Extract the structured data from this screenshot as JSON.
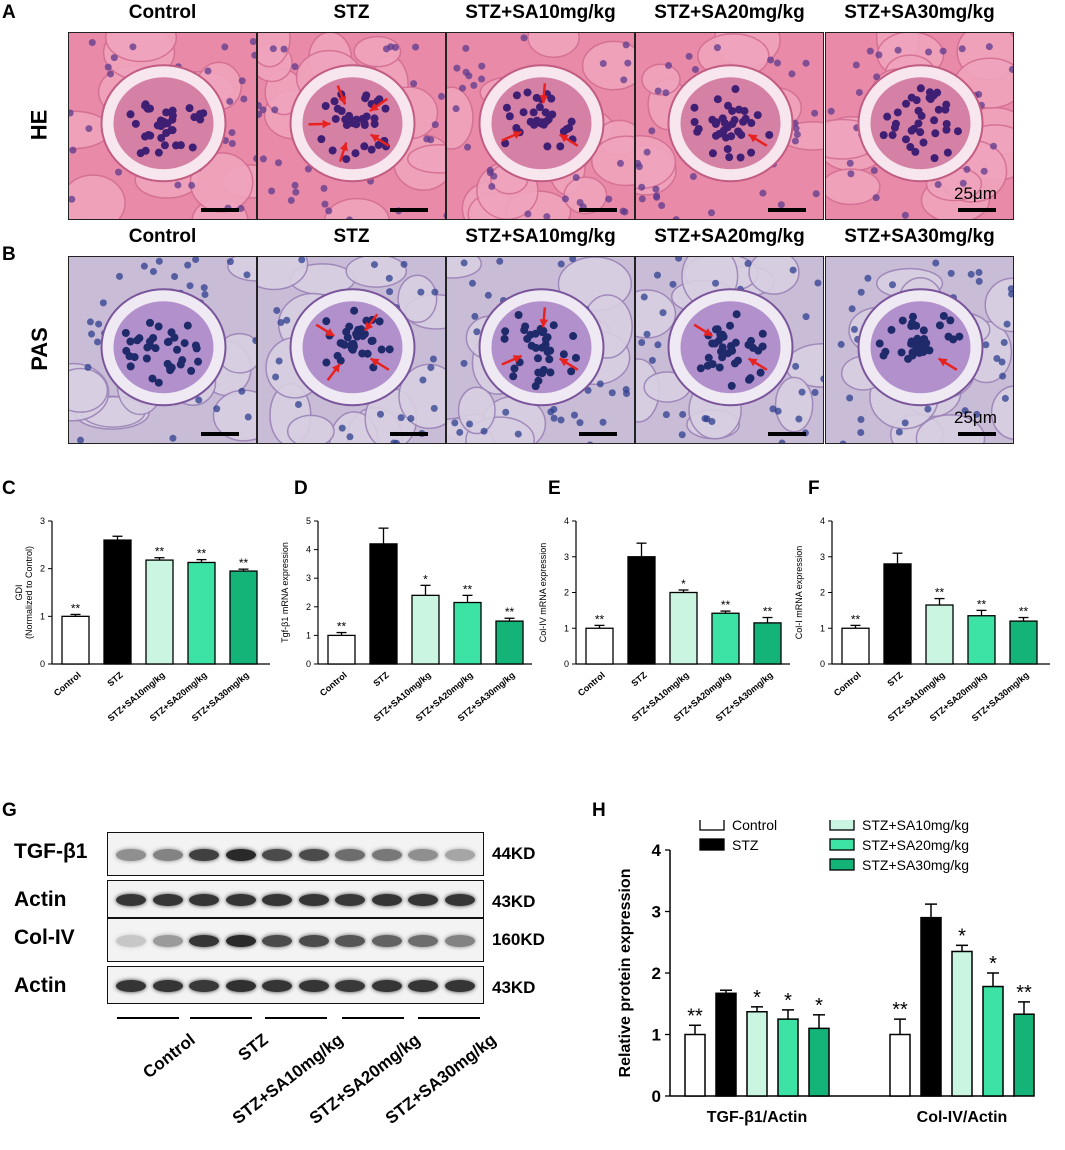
{
  "panels": {
    "A": "A",
    "B": "B",
    "C": "C",
    "D": "D",
    "E": "E",
    "F": "F",
    "G": "G",
    "H": "H"
  },
  "histology": {
    "he_label": "HE",
    "pas_label": "PAS",
    "he_titles": [
      "Control",
      "STZ",
      "STZ+SA10mg/kg",
      "STZ+SA20mg/kg",
      "STZ+SA30mg/kg"
    ],
    "pas_titles": [
      "Control",
      "STZ",
      "STZ+SA10mg/kg",
      "STZ+SA20mg/kg",
      "STZ+SA30mg/kg"
    ],
    "scale": "25μm",
    "he_arrows": [
      0,
      5,
      3,
      1,
      0
    ],
    "pas_arrows": [
      0,
      4,
      3,
      2,
      1
    ]
  },
  "colors": {
    "control": "#ffffff",
    "stz": "#000000",
    "sa10": "#c9f5e1",
    "sa20": "#3de3a4",
    "sa30": "#14b378",
    "he_bg": "#e88aa8",
    "pas_bg": "#c9bcd6",
    "arrow": "#e8221e"
  },
  "western": {
    "rows": [
      {
        "label": "TGF-β1",
        "kd": "44KD",
        "intensity": [
          0.5,
          0.55,
          0.85,
          0.95,
          0.8,
          0.8,
          0.65,
          0.6,
          0.5,
          0.4
        ]
      },
      {
        "label": "Actin",
        "kd": "43KD",
        "intensity": [
          0.9,
          0.9,
          0.9,
          0.9,
          0.9,
          0.9,
          0.88,
          0.9,
          0.9,
          0.9
        ]
      },
      {
        "label": "Col-IV",
        "kd": "160KD",
        "intensity": [
          0.25,
          0.45,
          0.9,
          0.95,
          0.8,
          0.8,
          0.75,
          0.7,
          0.65,
          0.55
        ]
      },
      {
        "label": "Actin",
        "kd": "43KD",
        "intensity": [
          0.9,
          0.9,
          0.88,
          0.92,
          0.9,
          0.9,
          0.88,
          0.9,
          0.9,
          0.9
        ]
      }
    ],
    "groups": [
      "Control",
      "STZ",
      "STZ+SA10mg/kg",
      "STZ+SA20mg/kg",
      "STZ+SA30mg/kg"
    ]
  },
  "chart_data": [
    {
      "panel": "C",
      "type": "bar",
      "categories": [
        "Control",
        "STZ",
        "STZ+SA10mg/kg",
        "STZ+SA20mg/kg",
        "STZ+SA30mg/kg"
      ],
      "values": [
        1.0,
        2.6,
        2.18,
        2.13,
        1.95
      ],
      "errors": [
        0.04,
        0.08,
        0.05,
        0.06,
        0.04
      ],
      "significance": [
        "**",
        "",
        "**",
        "**",
        "**"
      ],
      "ylabel": "GDI",
      "ylabel2": "(Normalized to Control)",
      "ylim": [
        0,
        3
      ],
      "yticks": [
        0,
        1,
        2,
        3
      ]
    },
    {
      "panel": "D",
      "type": "bar",
      "categories": [
        "Control",
        "STZ",
        "STZ+SA10mg/kg",
        "STZ+SA20mg/kg",
        "STZ+SA30mg/kg"
      ],
      "values": [
        1.0,
        4.2,
        2.4,
        2.15,
        1.5
      ],
      "errors": [
        0.1,
        0.55,
        0.35,
        0.25,
        0.1
      ],
      "significance": [
        "**",
        "",
        "*",
        "**",
        "**"
      ],
      "ylabel": "Tgf-β1 mRNA expression",
      "ylim": [
        0,
        5
      ],
      "yticks": [
        0,
        1,
        2,
        3,
        4,
        5
      ]
    },
    {
      "panel": "E",
      "type": "bar",
      "categories": [
        "Control",
        "STZ",
        "STZ+SA10mg/kg",
        "STZ+SA20mg/kg",
        "STZ+SA30mg/kg"
      ],
      "values": [
        1.0,
        3.0,
        2.0,
        1.42,
        1.15
      ],
      "errors": [
        0.08,
        0.38,
        0.07,
        0.06,
        0.15
      ],
      "significance": [
        "**",
        "",
        "*",
        "**",
        "**"
      ],
      "ylabel": "Col-IV mRNA expression",
      "ylim": [
        0,
        4
      ],
      "yticks": [
        0,
        1,
        2,
        3,
        4
      ]
    },
    {
      "panel": "F",
      "type": "bar",
      "categories": [
        "Control",
        "STZ",
        "STZ+SA10mg/kg",
        "STZ+SA20mg/kg",
        "STZ+SA30mg/kg"
      ],
      "values": [
        1.0,
        2.8,
        1.65,
        1.35,
        1.2
      ],
      "errors": [
        0.08,
        0.3,
        0.18,
        0.15,
        0.1
      ],
      "significance": [
        "**",
        "",
        "**",
        "**",
        "**"
      ],
      "ylabel": "Col-I mRNA expression",
      "ylim": [
        0,
        4
      ],
      "yticks": [
        0,
        1,
        2,
        3,
        4
      ]
    },
    {
      "panel": "H",
      "type": "bar",
      "categories": [
        "TGF-β1/Actin",
        "Col-IV/Actin"
      ],
      "series": [
        {
          "name": "Control",
          "values": [
            1.0,
            1.0
          ],
          "errors": [
            0.15,
            0.25
          ],
          "significance": [
            "**",
            "**"
          ]
        },
        {
          "name": "STZ",
          "values": [
            1.67,
            2.9
          ],
          "errors": [
            0.05,
            0.22
          ],
          "significance": [
            "",
            ""
          ]
        },
        {
          "name": "STZ+SA10mg/kg",
          "values": [
            1.37,
            2.35
          ],
          "errors": [
            0.08,
            0.1
          ],
          "significance": [
            "*",
            "*"
          ]
        },
        {
          "name": "STZ+SA20mg/kg",
          "values": [
            1.25,
            1.78
          ],
          "errors": [
            0.15,
            0.22
          ],
          "significance": [
            "*",
            "*"
          ]
        },
        {
          "name": "STZ+SA30mg/kg",
          "values": [
            1.1,
            1.33
          ],
          "errors": [
            0.22,
            0.2
          ],
          "significance": [
            "*",
            "**"
          ]
        }
      ],
      "ylabel": "Relative protein expression",
      "ylim": [
        0,
        4
      ],
      "yticks": [
        0,
        1,
        2,
        3,
        4
      ],
      "legend": "top"
    }
  ]
}
